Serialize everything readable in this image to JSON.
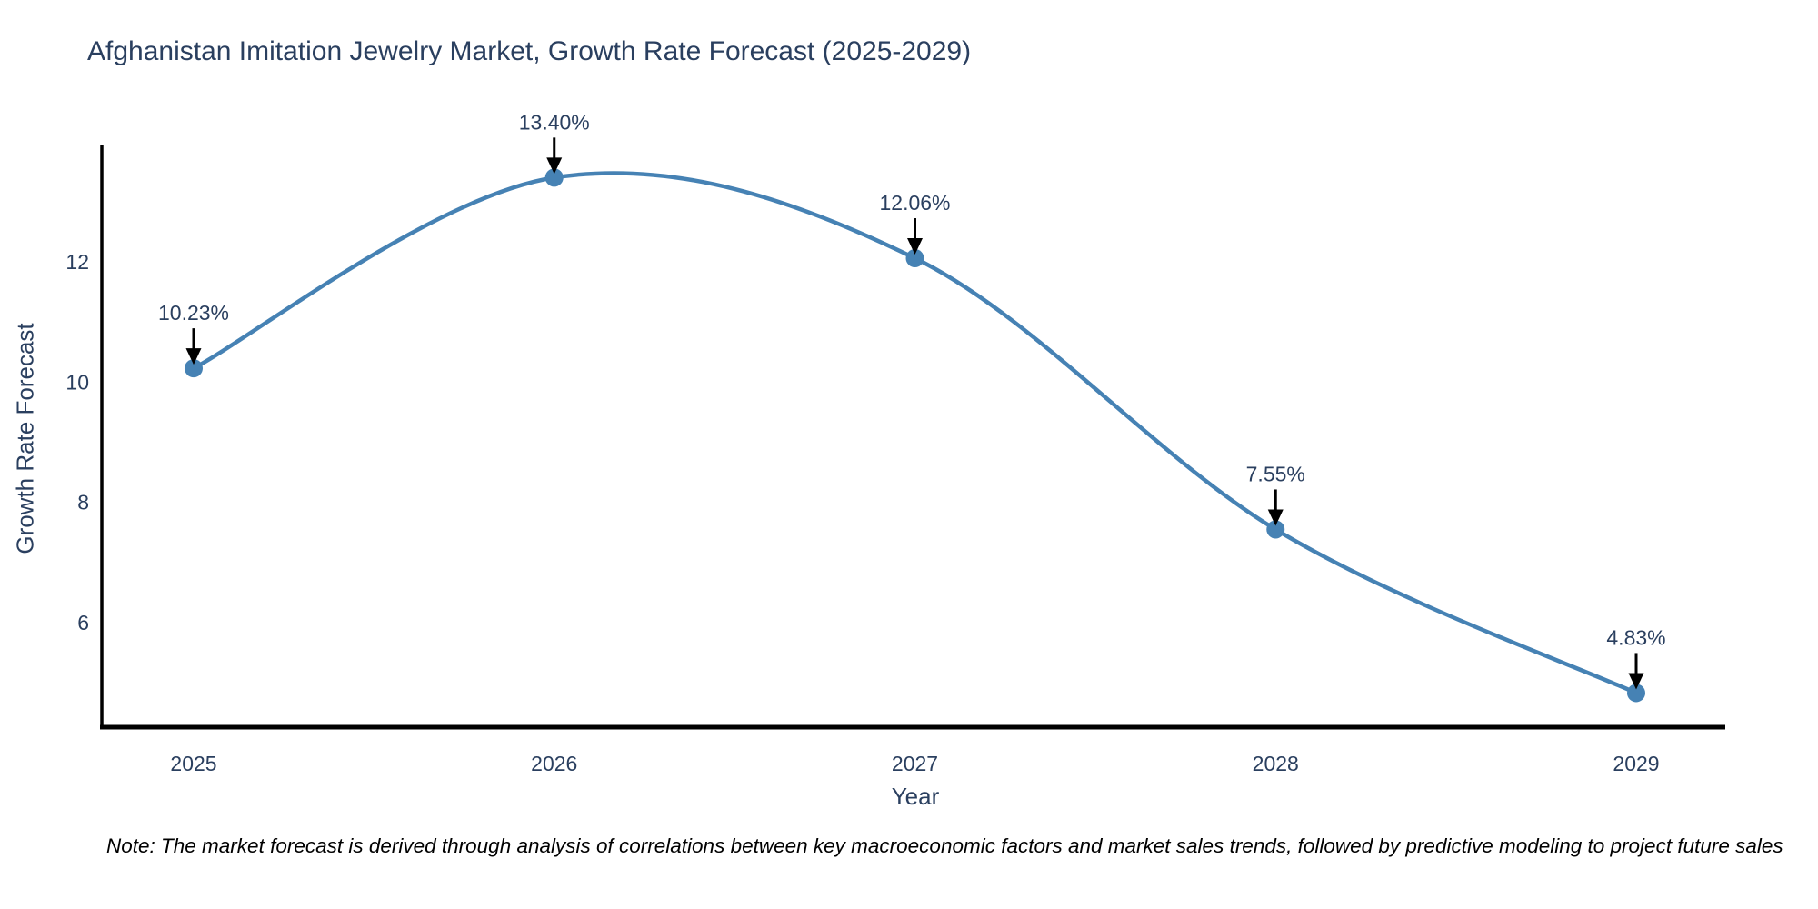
{
  "title": "Afghanistan Imitation Jewelry Market, Growth Rate Forecast (2025-2029)",
  "note": "Note: The market forecast is derived through analysis of correlations between key macroeconomic factors and market sales trends, followed by predictive modeling to project future sales",
  "chart_data": {
    "type": "line",
    "title": "Afghanistan Imitation Jewelry Market, Growth Rate Forecast (2025-2029)",
    "x": [
      2025,
      2026,
      2027,
      2028,
      2029
    ],
    "values": [
      10.23,
      13.4,
      12.06,
      7.55,
      4.83
    ],
    "point_labels": [
      "10.23%",
      "13.40%",
      "12.06%",
      "7.55%",
      "4.83%"
    ],
    "xlabel": "Year",
    "ylabel": "Growth Rate Forecast",
    "xticks": [
      "2025",
      "2026",
      "2027",
      "2028",
      "2029"
    ],
    "yticks": [
      6,
      8,
      10,
      12
    ],
    "ylim": [
      4.25,
      14.1
    ],
    "line_shape": "spline",
    "grid": false,
    "legend": "none",
    "markers": true,
    "annotations": "value labels with black arrows above each point"
  },
  "colors": {
    "line": "#4682B4",
    "marker": "#4682B4",
    "axis_line": "#000000",
    "text_dark": "#2a3f5f",
    "arrow": "#000000",
    "note_text": "#000000",
    "background": "#ffffff"
  }
}
